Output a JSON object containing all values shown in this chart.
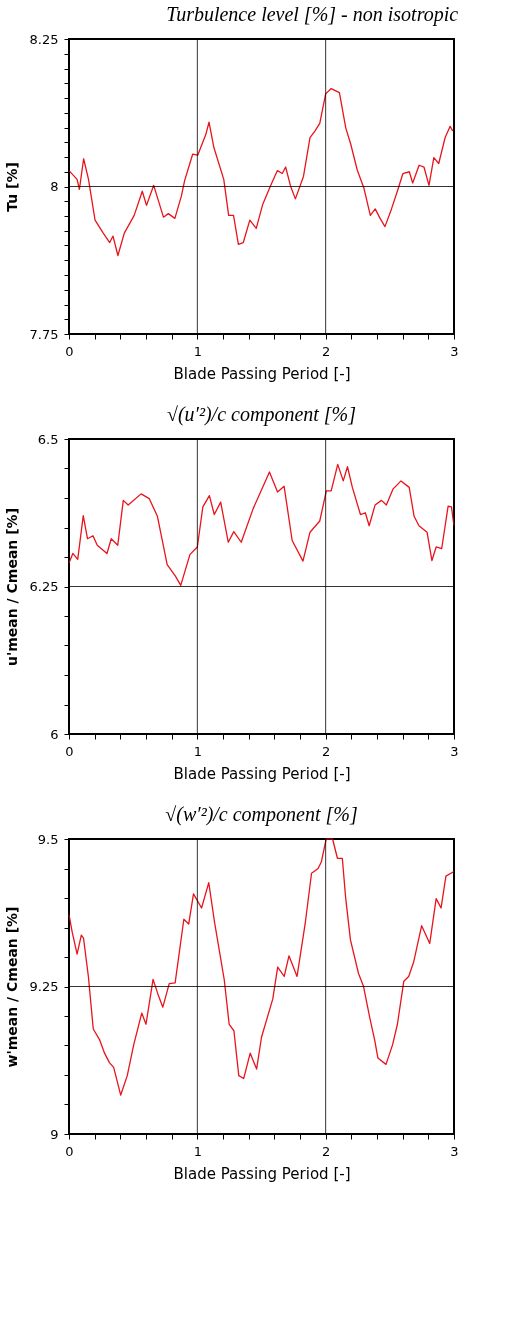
{
  "chart_data": [
    {
      "type": "line",
      "title": "Turbulence level [%] - non isotropic",
      "xlabel": "Blade Passing Period [-]",
      "ylabel": "Tu  [%]",
      "grid": true,
      "marker": "none",
      "line_style": "solid",
      "xlim": [
        0,
        3
      ],
      "xticks": [
        0,
        {
          "value": 0.2,
          "label": null
        },
        {
          "value": 0.4,
          "label": null
        },
        {
          "value": 0.6,
          "label": null
        },
        {
          "value": 0.8,
          "label": null
        },
        1,
        {
          "value": 1.2,
          "label": null
        },
        {
          "value": 1.4,
          "label": null
        },
        {
          "value": 1.6,
          "label": null
        },
        {
          "value": 1.8,
          "label": null
        },
        2,
        {
          "value": 2.2,
          "label": null
        },
        {
          "value": 2.4,
          "label": null
        },
        {
          "value": 2.6,
          "label": null
        },
        {
          "value": 2.8,
          "label": null
        },
        3
      ],
      "ylim": [
        7.75,
        8.25
      ],
      "yticks": [
        7.75,
        {
          "value": 7.775,
          "label": null
        },
        {
          "value": 7.8,
          "label": null
        },
        {
          "value": 7.825,
          "label": null
        },
        {
          "value": 7.85,
          "label": null
        },
        {
          "value": 7.875,
          "label": null
        },
        {
          "value": 7.9,
          "label": null
        },
        {
          "value": 7.925,
          "label": null
        },
        {
          "value": 7.95,
          "label": null
        },
        {
          "value": 7.975,
          "label": null
        },
        8,
        {
          "value": 8.025,
          "label": null
        },
        {
          "value": 8.05,
          "label": null
        },
        {
          "value": 8.075,
          "label": null
        },
        {
          "value": 8.1,
          "label": null
        },
        {
          "value": 8.125,
          "label": null
        },
        {
          "value": 8.15,
          "label": null
        },
        {
          "value": 8.175,
          "label": null
        },
        {
          "value": 8.2,
          "label": null
        },
        {
          "value": 8.225,
          "label": null
        },
        8.25
      ],
      "x": [
        0,
        0.063,
        0.081,
        0.114,
        0.152,
        0.203,
        0.267,
        0.317,
        0.343,
        0.381,
        0.431,
        0.508,
        0.571,
        0.604,
        0.66,
        0.736,
        0.774,
        0.825,
        0.876,
        0.901,
        0.964,
        1.003,
        1.066,
        1.091,
        1.129,
        1.206,
        1.244,
        1.282,
        1.32,
        1.358,
        1.409,
        1.459,
        1.51,
        1.574,
        1.624,
        1.662,
        1.688,
        1.726,
        1.764,
        1.827,
        1.878,
        1.916,
        1.954,
        2.0,
        2.043,
        2.107,
        2.157,
        2.195,
        2.246,
        2.297,
        2.348,
        2.386,
        2.424,
        2.462,
        2.513,
        2.563,
        2.602,
        2.652,
        2.678,
        2.728,
        2.766,
        2.805,
        2.843,
        2.881,
        2.931,
        2.97,
        2.99
      ],
      "series": [
        {
          "color": "#e8141c",
          "values": [
            8.027,
            8.012,
            7.995,
            8.047,
            8.012,
            7.943,
            7.921,
            7.905,
            7.916,
            7.883,
            7.921,
            7.951,
            7.992,
            7.968,
            8.002,
            7.948,
            7.954,
            7.946,
            7.984,
            8.01,
            8.055,
            8.053,
            8.088,
            8.109,
            8.066,
            8.012,
            7.951,
            7.951,
            7.902,
            7.905,
            7.943,
            7.929,
            7.97,
            8.003,
            8.027,
            8.022,
            8.033,
            8.001,
            7.979,
            8.017,
            8.083,
            8.094,
            8.107,
            8.157,
            8.166,
            8.159,
            8.099,
            8.072,
            8.028,
            7.998,
            7.951,
            7.962,
            7.946,
            7.932,
            7.962,
            7.995,
            8.022,
            8.025,
            8.006,
            8.036,
            8.033,
            8.002,
            8.049,
            8.039,
            8.083,
            8.102,
            8.094
          ]
        }
      ]
    },
    {
      "type": "line",
      "title": "√(u′²)/c component [%]",
      "xlabel": "Blade Passing Period [-]",
      "ylabel": "u'mean / Cmean  [%]",
      "grid": true,
      "marker": "none",
      "line_style": "solid",
      "xlim": [
        0,
        3
      ],
      "xticks": [
        0,
        {
          "value": 0.2,
          "label": null
        },
        {
          "value": 0.4,
          "label": null
        },
        {
          "value": 0.6,
          "label": null
        },
        {
          "value": 0.8,
          "label": null
        },
        1,
        {
          "value": 1.2,
          "label": null
        },
        {
          "value": 1.4,
          "label": null
        },
        {
          "value": 1.6,
          "label": null
        },
        {
          "value": 1.8,
          "label": null
        },
        2,
        {
          "value": 2.2,
          "label": null
        },
        {
          "value": 2.4,
          "label": null
        },
        {
          "value": 2.6,
          "label": null
        },
        {
          "value": 2.8,
          "label": null
        },
        3
      ],
      "ylim": [
        6,
        6.5
      ],
      "yticks": [
        6,
        {
          "value": 6.05,
          "label": null
        },
        {
          "value": 6.1,
          "label": null
        },
        {
          "value": 6.15,
          "label": null
        },
        {
          "value": 6.2,
          "label": null
        },
        6.25,
        {
          "value": 6.3,
          "label": null
        },
        {
          "value": 6.35,
          "label": null
        },
        {
          "value": 6.4,
          "label": null
        },
        {
          "value": 6.45,
          "label": null
        },
        6.5
      ],
      "x": [
        0,
        0.03,
        0.068,
        0.111,
        0.144,
        0.187,
        0.22,
        0.296,
        0.329,
        0.38,
        0.423,
        0.461,
        0.562,
        0.625,
        0.689,
        0.765,
        0.828,
        0.871,
        0.942,
        1.0,
        1.043,
        1.094,
        1.132,
        1.182,
        1.241,
        1.284,
        1.342,
        1.435,
        1.511,
        1.562,
        1.625,
        1.676,
        1.739,
        1.823,
        1.878,
        1.954,
        2.005,
        2.043,
        2.094,
        2.137,
        2.17,
        2.208,
        2.271,
        2.309,
        2.339,
        2.385,
        2.435,
        2.473,
        2.524,
        2.587,
        2.651,
        2.689,
        2.727,
        2.79,
        2.828,
        2.861,
        2.904,
        2.954,
        2.98,
        3.0
      ],
      "series": [
        {
          "color": "#e8141c",
          "values": [
            6.29,
            6.306,
            6.296,
            6.37,
            6.331,
            6.336,
            6.32,
            6.306,
            6.331,
            6.32,
            6.396,
            6.388,
            6.407,
            6.399,
            6.369,
            6.287,
            6.268,
            6.252,
            6.304,
            6.317,
            6.385,
            6.404,
            6.372,
            6.393,
            6.325,
            6.343,
            6.325,
            6.382,
            6.419,
            6.444,
            6.41,
            6.42,
            6.328,
            6.293,
            6.342,
            6.361,
            6.412,
            6.412,
            6.457,
            6.429,
            6.453,
            6.418,
            6.372,
            6.375,
            6.353,
            6.388,
            6.396,
            6.388,
            6.415,
            6.429,
            6.418,
            6.369,
            6.353,
            6.342,
            6.294,
            6.317,
            6.314,
            6.386,
            6.385,
            6.353
          ]
        }
      ]
    },
    {
      "type": "line",
      "title": "√(w′²)/c component [%]",
      "xlabel": "Blade Passing Period [-]",
      "ylabel": "w'mean / Cmean  [%]",
      "grid": true,
      "marker": "none",
      "line_style": "solid",
      "xlim": [
        0,
        3
      ],
      "xticks": [
        0,
        {
          "value": 0.2,
          "label": null
        },
        {
          "value": 0.4,
          "label": null
        },
        {
          "value": 0.6,
          "label": null
        },
        {
          "value": 0.8,
          "label": null
        },
        1,
        {
          "value": 1.2,
          "label": null
        },
        {
          "value": 1.4,
          "label": null
        },
        {
          "value": 1.6,
          "label": null
        },
        {
          "value": 1.8,
          "label": null
        },
        2,
        {
          "value": 2.2,
          "label": null
        },
        {
          "value": 2.4,
          "label": null
        },
        {
          "value": 2.6,
          "label": null
        },
        {
          "value": 2.8,
          "label": null
        },
        3
      ],
      "ylim": [
        9,
        9.5
      ],
      "yticks": [
        9,
        {
          "value": 9.05,
          "label": null
        },
        {
          "value": 9.1,
          "label": null
        },
        {
          "value": 9.15,
          "label": null
        },
        {
          "value": 9.2,
          "label": null
        },
        9.25,
        {
          "value": 9.3,
          "label": null
        },
        {
          "value": 9.35,
          "label": null
        },
        {
          "value": 9.4,
          "label": null
        },
        {
          "value": 9.45,
          "label": null
        },
        9.5
      ],
      "x": [
        0,
        0.025,
        0.063,
        0.096,
        0.113,
        0.151,
        0.189,
        0.24,
        0.277,
        0.315,
        0.348,
        0.403,
        0.454,
        0.504,
        0.567,
        0.6,
        0.655,
        0.693,
        0.731,
        0.781,
        0.827,
        0.895,
        0.933,
        0.97,
        1.033,
        1.089,
        1.134,
        1.21,
        1.248,
        1.285,
        1.323,
        1.361,
        1.412,
        1.462,
        1.5,
        1.588,
        1.626,
        1.677,
        1.714,
        1.777,
        1.84,
        1.89,
        1.941,
        1.966,
        2.004,
        2.054,
        2.092,
        2.13,
        2.155,
        2.193,
        2.256,
        2.294,
        2.344,
        2.382,
        2.407,
        2.47,
        2.521,
        2.559,
        2.609,
        2.647,
        2.685,
        2.748,
        2.811,
        2.861,
        2.899,
        2.937,
        3.0
      ],
      "series": [
        {
          "color": "#e8141c",
          "values": [
            9.372,
            9.342,
            9.305,
            9.337,
            9.332,
            9.267,
            9.178,
            9.159,
            9.137,
            9.121,
            9.113,
            9.066,
            9.099,
            9.151,
            9.205,
            9.186,
            9.262,
            9.237,
            9.215,
            9.255,
            9.256,
            9.364,
            9.356,
            9.407,
            9.383,
            9.426,
            9.359,
            9.261,
            9.186,
            9.175,
            9.099,
            9.094,
            9.137,
            9.11,
            9.164,
            9.229,
            9.283,
            9.267,
            9.302,
            9.267,
            9.356,
            9.442,
            9.45,
            9.461,
            9.5,
            9.5,
            9.467,
            9.467,
            9.402,
            9.329,
            9.272,
            9.251,
            9.197,
            9.159,
            9.129,
            9.118,
            9.151,
            9.186,
            9.259,
            9.267,
            9.291,
            9.353,
            9.323,
            9.399,
            9.383,
            9.437,
            9.445
          ]
        }
      ]
    }
  ]
}
